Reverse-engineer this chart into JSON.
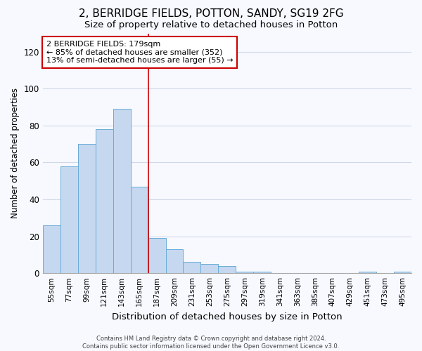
{
  "title": "2, BERRIDGE FIELDS, POTTON, SANDY, SG19 2FG",
  "subtitle": "Size of property relative to detached houses in Potton",
  "xlabel": "Distribution of detached houses by size in Potton",
  "ylabel": "Number of detached properties",
  "categories": [
    "55sqm",
    "77sqm",
    "99sqm",
    "121sqm",
    "143sqm",
    "165sqm",
    "187sqm",
    "209sqm",
    "231sqm",
    "253sqm",
    "275sqm",
    "297sqm",
    "319sqm",
    "341sqm",
    "363sqm",
    "385sqm",
    "407sqm",
    "429sqm",
    "451sqm",
    "473sqm",
    "495sqm"
  ],
  "values": [
    26,
    58,
    70,
    78,
    89,
    47,
    19,
    13,
    6,
    5,
    4,
    1,
    1,
    0,
    0,
    0,
    0,
    0,
    1,
    0,
    1
  ],
  "bar_color": "#c5d8f0",
  "bar_edge_color": "#6aacd6",
  "vline_x": 5.5,
  "annotation_text": "2 BERRIDGE FIELDS: 179sqm\n← 85% of detached houses are smaller (352)\n13% of semi-detached houses are larger (55) →",
  "ylim": [
    0,
    130
  ],
  "yticks": [
    0,
    20,
    40,
    60,
    80,
    100,
    120
  ],
  "footer": "Contains HM Land Registry data © Crown copyright and database right 2024.\nContains public sector information licensed under the Open Government Licence v3.0.",
  "background_color": "#f7f9ff",
  "grid_color": "#d0d8e8",
  "title_fontsize": 11,
  "subtitle_fontsize": 9.5,
  "annotation_box_color": "#ffffff",
  "annotation_box_edge": "#cc0000"
}
